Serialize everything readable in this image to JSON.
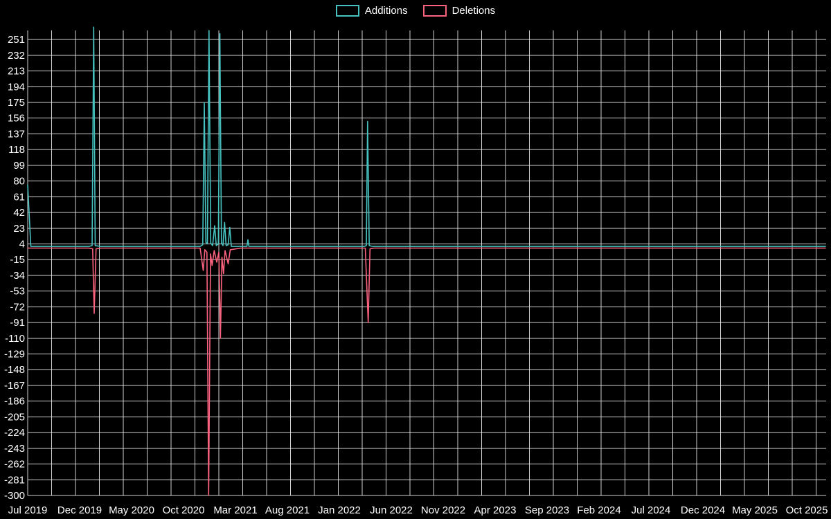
{
  "page": {
    "background": "#000000",
    "text_color": "#ffffff",
    "grid_color": "#e8e8e8"
  },
  "chart_data": {
    "type": "line",
    "title": "",
    "xlabel": "",
    "ylabel": "",
    "grid": true,
    "legend_position": "top-center",
    "x_axis": {
      "unit": "months since Jul 2019",
      "tick_positions": [
        0,
        5,
        10,
        15,
        20,
        25,
        30,
        35,
        40,
        45,
        50,
        55,
        60,
        65,
        70,
        75
      ],
      "tick_labels": [
        "Jul 2019",
        "Dec 2019",
        "May 2020",
        "Oct 2020",
        "Mar 2021",
        "Aug 2021",
        "Jan 2022",
        "Jun 2022",
        "Nov 2022",
        "Apr 2023",
        "Sep 2023",
        "Feb 2024",
        "Jul 2024",
        "Dec 2024",
        "May 2025",
        "Oct 2025"
      ]
    },
    "y_axis": {
      "ticks": [
        251,
        232,
        213,
        194,
        175,
        156,
        137,
        118,
        99,
        80,
        61,
        42,
        23,
        4,
        -15,
        -34,
        -53,
        -72,
        -91,
        -110,
        -129,
        -148,
        -167,
        -186,
        -205,
        -224,
        -243,
        -262,
        -281,
        -300
      ]
    },
    "xlim": [
      0,
      76.8
    ],
    "ylim": [
      -300,
      262
    ],
    "series": [
      {
        "name": "Additions",
        "color": "#46c3c0",
        "points": [
          [
            0,
            75
          ],
          [
            0.3,
            1
          ],
          [
            1,
            1
          ],
          [
            5.9,
            1
          ],
          [
            6.2,
            2
          ],
          [
            6.35,
            266
          ],
          [
            6.5,
            2
          ],
          [
            7,
            1
          ],
          [
            16.6,
            1
          ],
          [
            16.85,
            3
          ],
          [
            17.0,
            175
          ],
          [
            17.15,
            6
          ],
          [
            17.3,
            4
          ],
          [
            17.45,
            262
          ],
          [
            17.62,
            5
          ],
          [
            17.8,
            2
          ],
          [
            18.0,
            26
          ],
          [
            18.15,
            2
          ],
          [
            18.35,
            4
          ],
          [
            18.5,
            258
          ],
          [
            18.65,
            5
          ],
          [
            18.8,
            2
          ],
          [
            18.95,
            30
          ],
          [
            19.1,
            2
          ],
          [
            19.3,
            3
          ],
          [
            19.45,
            24
          ],
          [
            19.6,
            1
          ],
          [
            20.5,
            1
          ],
          [
            21.1,
            1
          ],
          [
            21.2,
            9
          ],
          [
            21.3,
            1
          ],
          [
            22,
            1
          ],
          [
            32.4,
            1
          ],
          [
            32.6,
            2
          ],
          [
            32.72,
            152
          ],
          [
            32.88,
            2
          ],
          [
            33.2,
            1
          ],
          [
            76.8,
            1
          ]
        ]
      },
      {
        "name": "Deletions",
        "color": "#fb627e",
        "points": [
          [
            0,
            -1
          ],
          [
            5.9,
            -1
          ],
          [
            6.25,
            -2
          ],
          [
            6.4,
            -80
          ],
          [
            6.58,
            -2
          ],
          [
            7,
            -1
          ],
          [
            16.6,
            -1
          ],
          [
            16.9,
            -28
          ],
          [
            17.05,
            -3
          ],
          [
            17.25,
            -6
          ],
          [
            17.42,
            -300
          ],
          [
            17.6,
            -8
          ],
          [
            17.75,
            -22
          ],
          [
            17.95,
            -4
          ],
          [
            18.2,
            -18
          ],
          [
            18.4,
            -6
          ],
          [
            18.55,
            -110
          ],
          [
            18.7,
            -12
          ],
          [
            18.85,
            -32
          ],
          [
            19.0,
            -4
          ],
          [
            19.3,
            -20
          ],
          [
            19.5,
            -3
          ],
          [
            20.5,
            -1
          ],
          [
            32.5,
            -1
          ],
          [
            32.78,
            -91
          ],
          [
            32.95,
            -2
          ],
          [
            33.3,
            -1
          ],
          [
            76.8,
            -1
          ]
        ]
      }
    ]
  }
}
